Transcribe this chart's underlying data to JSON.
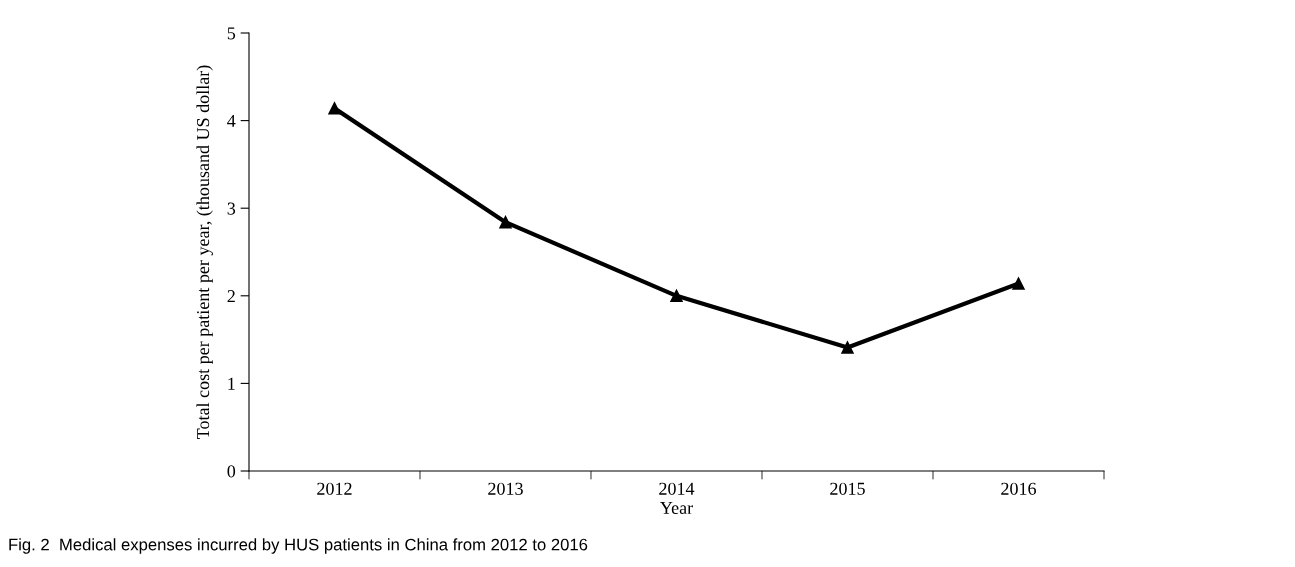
{
  "chart_data": {
    "type": "line",
    "categories": [
      "2012",
      "2013",
      "2014",
      "2015",
      "2016"
    ],
    "series": [
      {
        "color": "#000000",
        "values": [
          4.14,
          2.84,
          2.0,
          1.41,
          2.14
        ]
      }
    ],
    "xlabel": "Year",
    "ylabel": "Total cost per patient per year, (thousand US dollar)",
    "ylim": [
      0,
      5
    ],
    "yticks": [
      0,
      1,
      2,
      3,
      4,
      5
    ],
    "marker": "triangle",
    "line_style": "solid",
    "grid": false,
    "legend": false,
    "annotations": [
      "Fig. 2  Medical expenses incurred by HUS patients in China from 2012 to 2016"
    ]
  }
}
